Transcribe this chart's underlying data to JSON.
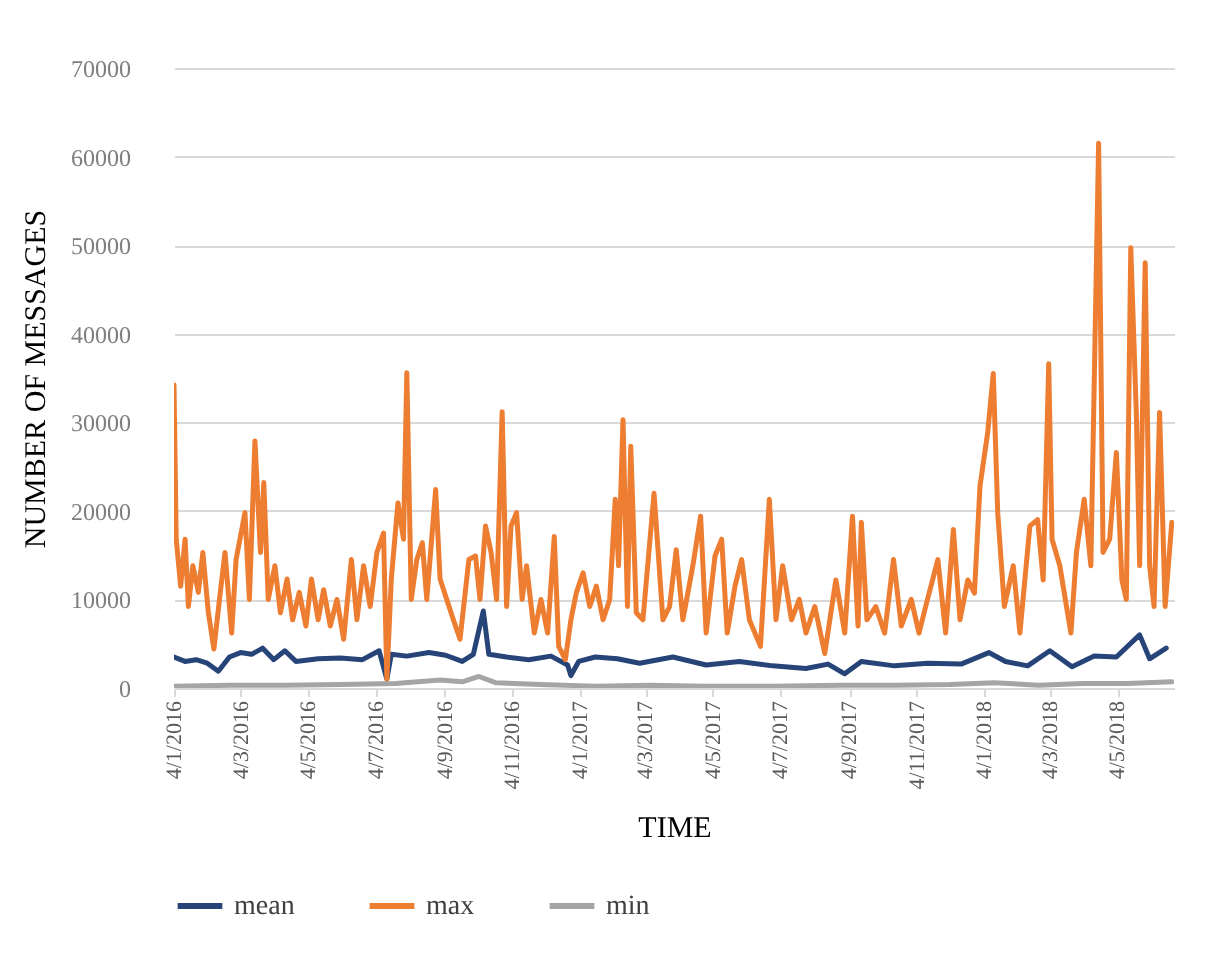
{
  "chart_data": {
    "type": "line",
    "xlabel": "TIME",
    "ylabel": "NUMBER OF MESSAGES",
    "legend": "bottom",
    "grid": "y",
    "marker": "none",
    "line_style": "solid",
    "xlim": [
      "2016-01-04",
      "2018-06-24"
    ],
    "xticks": [
      {
        "value": "2016-01-04",
        "label": "4/1/2016"
      },
      {
        "value": "2016-03-04",
        "label": "4/3/2016"
      },
      {
        "value": "2016-05-04",
        "label": "4/5/2016"
      },
      {
        "value": "2016-07-04",
        "label": "4/7/2016"
      },
      {
        "value": "2016-09-04",
        "label": "4/9/2016"
      },
      {
        "value": "2016-11-04",
        "label": "4/11/2016"
      },
      {
        "value": "2017-01-04",
        "label": "4/1/2017"
      },
      {
        "value": "2017-03-04",
        "label": "4/3/2017"
      },
      {
        "value": "2017-05-04",
        "label": "4/5/2017"
      },
      {
        "value": "2017-07-04",
        "label": "4/7/2017"
      },
      {
        "value": "2017-09-04",
        "label": "4/9/2017"
      },
      {
        "value": "2017-11-04",
        "label": "4/11/2017"
      },
      {
        "value": "2018-01-04",
        "label": "4/1/2018"
      },
      {
        "value": "2018-03-04",
        "label": "4/3/2018"
      },
      {
        "value": "2018-05-04",
        "label": "4/5/2018"
      }
    ],
    "ylim": [
      0,
      70000
    ],
    "yticks": [
      0,
      10000,
      20000,
      30000,
      40000,
      50000,
      60000,
      70000
    ],
    "series": [
      {
        "name": "mean",
        "color": "#264478",
        "x": [
          "2016-01-04",
          "2016-01-14",
          "2016-01-24",
          "2016-02-03",
          "2016-02-13",
          "2016-02-23",
          "2016-03-04",
          "2016-03-14",
          "2016-03-24",
          "2016-04-03",
          "2016-04-13",
          "2016-04-23",
          "2016-05-13",
          "2016-06-02",
          "2016-06-22",
          "2016-07-07",
          "2016-07-14",
          "2016-07-18",
          "2016-08-01",
          "2016-08-21",
          "2016-09-05",
          "2016-09-20",
          "2016-09-30",
          "2016-10-09",
          "2016-10-14",
          "2016-10-30",
          "2016-11-19",
          "2016-12-09",
          "2016-12-24",
          "2016-12-27",
          "2017-01-03",
          "2017-01-18",
          "2017-02-07",
          "2017-02-27",
          "2017-03-29",
          "2017-04-28",
          "2017-05-28",
          "2017-06-27",
          "2017-07-27",
          "2017-08-16",
          "2017-08-31",
          "2017-09-15",
          "2017-10-15",
          "2017-11-14",
          "2017-12-14",
          "2018-01-08",
          "2018-01-23",
          "2018-02-12",
          "2018-03-04",
          "2018-03-24",
          "2018-04-13",
          "2018-05-03",
          "2018-05-24",
          "2018-06-02",
          "2018-06-17"
        ],
        "values": [
          3500,
          3000,
          3200,
          2800,
          1900,
          3500,
          4000,
          3800,
          4500,
          3200,
          4200,
          3000,
          3300,
          3400,
          3200,
          4200,
          1000,
          3800,
          3600,
          4000,
          3700,
          3000,
          3800,
          8700,
          3800,
          3500,
          3200,
          3600,
          2600,
          1400,
          3000,
          3500,
          3300,
          2800,
          3500,
          2600,
          3000,
          2500,
          2200,
          2700,
          1600,
          3000,
          2500,
          2800,
          2700,
          4000,
          3000,
          2500,
          4200,
          2400,
          3600,
          3500,
          6000,
          3300,
          4500
        ]
      },
      {
        "name": "max",
        "color": "#ed7d31",
        "x": [
          "2016-01-04",
          "2016-01-06",
          "2016-01-10",
          "2016-01-14",
          "2016-01-17",
          "2016-01-21",
          "2016-01-26",
          "2016-01-30",
          "2016-02-04",
          "2016-02-09",
          "2016-02-14",
          "2016-02-19",
          "2016-02-25",
          "2016-02-29",
          "2016-03-08",
          "2016-03-12",
          "2016-03-17",
          "2016-03-22",
          "2016-03-25",
          "2016-03-29",
          "2016-04-04",
          "2016-04-09",
          "2016-04-15",
          "2016-04-20",
          "2016-04-26",
          "2016-05-02",
          "2016-05-07",
          "2016-05-13",
          "2016-05-18",
          "2016-05-24",
          "2016-05-30",
          "2016-06-05",
          "2016-06-12",
          "2016-06-17",
          "2016-06-23",
          "2016-06-29",
          "2016-07-05",
          "2016-07-11",
          "2016-07-14",
          "2016-07-18",
          "2016-07-24",
          "2016-07-29",
          "2016-08-01",
          "2016-08-05",
          "2016-08-10",
          "2016-08-15",
          "2016-08-19",
          "2016-08-27",
          "2016-08-31",
          "2016-09-06",
          "2016-09-12",
          "2016-09-18",
          "2016-09-26",
          "2016-10-02",
          "2016-10-06",
          "2016-10-11",
          "2016-10-16",
          "2016-10-21",
          "2016-10-26",
          "2016-10-30",
          "2016-11-03",
          "2016-11-08",
          "2016-11-13",
          "2016-11-17",
          "2016-11-24",
          "2016-11-30",
          "2016-12-06",
          "2016-12-12",
          "2016-12-16",
          "2016-12-22",
          "2016-12-27",
          "2017-01-01",
          "2017-01-07",
          "2017-01-13",
          "2017-01-19",
          "2017-01-25",
          "2017-01-31",
          "2017-02-05",
          "2017-02-08",
          "2017-02-12",
          "2017-02-16",
          "2017-02-19",
          "2017-02-24",
          "2017-03-02",
          "2017-03-12",
          "2017-03-20",
          "2017-03-26",
          "2017-04-01",
          "2017-04-07",
          "2017-04-16",
          "2017-04-23",
          "2017-04-28",
          "2017-05-06",
          "2017-05-12",
          "2017-05-17",
          "2017-05-24",
          "2017-05-30",
          "2017-06-06",
          "2017-06-16",
          "2017-06-24",
          "2017-06-30",
          "2017-07-06",
          "2017-07-14",
          "2017-07-21",
          "2017-07-27",
          "2017-08-04",
          "2017-08-13",
          "2017-08-23",
          "2017-08-31",
          "2017-09-07",
          "2017-09-12",
          "2017-09-15",
          "2017-09-20",
          "2017-09-28",
          "2017-10-06",
          "2017-10-14",
          "2017-10-21",
          "2017-10-30",
          "2017-11-06",
          "2017-11-12",
          "2017-11-23",
          "2017-11-30",
          "2017-12-07",
          "2017-12-13",
          "2017-12-20",
          "2017-12-26",
          "2017-12-31",
          "2018-01-07",
          "2018-01-12",
          "2018-01-16",
          "2018-01-22",
          "2018-01-30",
          "2018-02-05",
          "2018-02-14",
          "2018-02-21",
          "2018-02-26",
          "2018-03-03",
          "2018-03-06",
          "2018-03-13",
          "2018-03-23",
          "2018-03-28",
          "2018-04-04",
          "2018-04-10",
          "2018-04-17",
          "2018-04-21",
          "2018-04-27",
          "2018-05-03",
          "2018-05-08",
          "2018-05-12",
          "2018-05-16",
          "2018-05-21",
          "2018-05-24",
          "2018-05-29",
          "2018-06-02",
          "2018-06-06",
          "2018-06-11",
          "2018-06-16",
          "2018-06-22"
        ],
        "values": [
          34200,
          16800,
          11500,
          16800,
          9200,
          13800,
          10800,
          15300,
          8500,
          4400,
          10000,
          15300,
          6200,
          14500,
          19800,
          10000,
          27900,
          15300,
          23200,
          10000,
          13800,
          8500,
          12300,
          7700,
          10800,
          7000,
          12300,
          7700,
          11100,
          7000,
          10000,
          5500,
          14500,
          7700,
          13800,
          9200,
          15300,
          17500,
          1000,
          12300,
          20900,
          16800,
          35600,
          10000,
          14500,
          16400,
          10000,
          22400,
          12300,
          10000,
          7700,
          5500,
          14500,
          14900,
          10000,
          18300,
          15300,
          10000,
          31200,
          9200,
          18300,
          19800,
          10000,
          13800,
          6200,
          10000,
          6200,
          17100,
          4700,
          3200,
          7700,
          10800,
          13000,
          9200,
          11500,
          7700,
          10000,
          21300,
          13800,
          30300,
          9200,
          27300,
          8500,
          7700,
          22000,
          7700,
          9200,
          15600,
          7700,
          13800,
          19400,
          6200,
          14900,
          16800,
          6200,
          11500,
          14500,
          7700,
          4700,
          21300,
          7700,
          13800,
          7700,
          10000,
          6200,
          9200,
          3900,
          12200,
          6200,
          19400,
          7000,
          18700,
          7700,
          9200,
          6200,
          14500,
          7000,
          10000,
          6200,
          9200,
          14500,
          6200,
          17900,
          7700,
          12200,
          10700,
          22800,
          28900,
          35500,
          19800,
          9200,
          13800,
          6200,
          18300,
          19000,
          12200,
          36600,
          16800,
          13800,
          6200,
          15300,
          21300,
          13800,
          61500,
          15300,
          16800,
          26600,
          12200,
          10000,
          49700,
          31100,
          13800,
          48000,
          13800,
          9200,
          31100,
          9200,
          18700
        ]
      },
      {
        "name": "min",
        "color": "#a5a5a5",
        "x": [
          "2016-01-04",
          "2016-02-23",
          "2016-04-13",
          "2016-06-02",
          "2016-07-22",
          "2016-08-31",
          "2016-09-20",
          "2016-10-05",
          "2016-10-20",
          "2016-11-29",
          "2017-01-18",
          "2017-03-09",
          "2017-04-28",
          "2017-06-27",
          "2017-08-26",
          "2017-10-15",
          "2017-12-04",
          "2018-01-13",
          "2018-02-22",
          "2018-04-03",
          "2018-05-13",
          "2018-06-22"
        ],
        "values": [
          200,
          300,
          300,
          400,
          500,
          900,
          700,
          1300,
          600,
          400,
          200,
          300,
          200,
          200,
          300,
          300,
          400,
          600,
          300,
          500,
          500,
          700
        ]
      }
    ]
  }
}
